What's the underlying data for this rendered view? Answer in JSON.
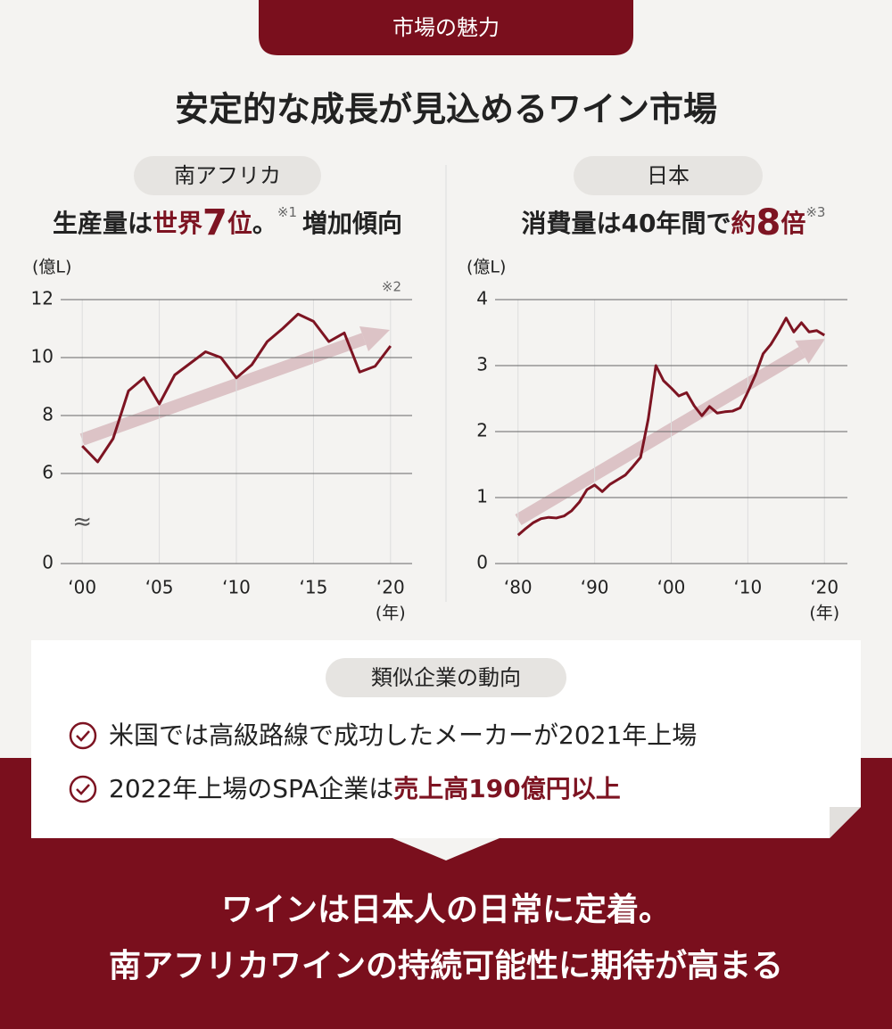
{
  "header": {
    "tag": "市場の魅力",
    "title": "安定的な成長が見込めるワイン市場"
  },
  "panels": [
    {
      "label": "南アフリカ",
      "headline": [
        "生産量は",
        "世界",
        "7",
        "位",
        "。",
        "※1",
        "増加傾向"
      ]
    },
    {
      "label": "日本",
      "headline": [
        "消費量は40年間で",
        "約",
        "8",
        "倍",
        "※3"
      ]
    }
  ],
  "chart_data": [
    {
      "type": "line",
      "y_label": "(億L)",
      "x_label": "(年)",
      "note": "※2",
      "break_mark": "≈",
      "x": [
        2000,
        2001,
        2002,
        2003,
        2004,
        2005,
        2006,
        2007,
        2008,
        2009,
        2010,
        2011,
        2012,
        2013,
        2014,
        2015,
        2016,
        2017,
        2018,
        2019,
        2020
      ],
      "series": [
        {
          "color": "#7d1422",
          "values": [
            6.95,
            6.4,
            7.2,
            8.85,
            9.3,
            8.4,
            9.4,
            9.8,
            10.2,
            10.0,
            9.3,
            9.75,
            10.55,
            11.0,
            11.5,
            11.25,
            10.55,
            10.85,
            9.5,
            9.7,
            10.4
          ]
        }
      ],
      "xlim": [
        1998.6,
        2021.4
      ],
      "xticks": [
        {
          "value": 2000,
          "label": "‘00"
        },
        {
          "value": 2005,
          "label": "‘05"
        },
        {
          "value": 2010,
          "label": "‘10"
        },
        {
          "value": 2015,
          "label": "‘15"
        },
        {
          "value": 2020,
          "label": "‘20"
        }
      ],
      "ylim": [
        0,
        12
      ],
      "y_break": [
        0,
        6
      ],
      "yticks": [
        0,
        6,
        8,
        10,
        12
      ],
      "grid": true
    },
    {
      "type": "line",
      "y_label": "(億L)",
      "x_label": "(年)",
      "x": [
        1980,
        1981,
        1982,
        1983,
        1984,
        1985,
        1986,
        1987,
        1988,
        1989,
        1990,
        1991,
        1992,
        1993,
        1994,
        1995,
        1996,
        1997,
        1998,
        1999,
        2000,
        2001,
        2002,
        2003,
        2004,
        2005,
        2006,
        2007,
        2008,
        2009,
        2010,
        2011,
        2012,
        2013,
        2014,
        2015,
        2016,
        2017,
        2018,
        2019,
        2020
      ],
      "series": [
        {
          "color": "#7d1422",
          "values": [
            0.43,
            0.53,
            0.62,
            0.68,
            0.7,
            0.69,
            0.72,
            0.8,
            0.93,
            1.12,
            1.19,
            1.09,
            1.2,
            1.27,
            1.34,
            1.47,
            1.61,
            2.19,
            3.0,
            2.77,
            2.66,
            2.54,
            2.59,
            2.39,
            2.24,
            2.38,
            2.28,
            2.3,
            2.31,
            2.36,
            2.6,
            2.86,
            3.18,
            3.32,
            3.51,
            3.72,
            3.51,
            3.65,
            3.51,
            3.53,
            3.46
          ]
        }
      ],
      "xlim": [
        1977,
        2023
      ],
      "xticks": [
        {
          "value": 1980,
          "label": "‘80"
        },
        {
          "value": 1990,
          "label": "‘90"
        },
        {
          "value": 2000,
          "label": "‘00"
        },
        {
          "value": 2010,
          "label": "‘10"
        },
        {
          "value": 2020,
          "label": "‘20"
        }
      ],
      "ylim": [
        0,
        4
      ],
      "yticks": [
        0,
        1,
        2,
        3,
        4
      ],
      "grid": true
    }
  ],
  "peers": {
    "label": "類似企業の動向",
    "items": [
      [
        "米国では高級路線で成功したメーカーが2021年上場"
      ],
      [
        "2022年上場のSPA企業は",
        "売上高190億円以上"
      ]
    ]
  },
  "conclusion": [
    "ワインは日本人の日常に定着。",
    "南アフリカワインの持続可能性に期待が高まる"
  ]
}
